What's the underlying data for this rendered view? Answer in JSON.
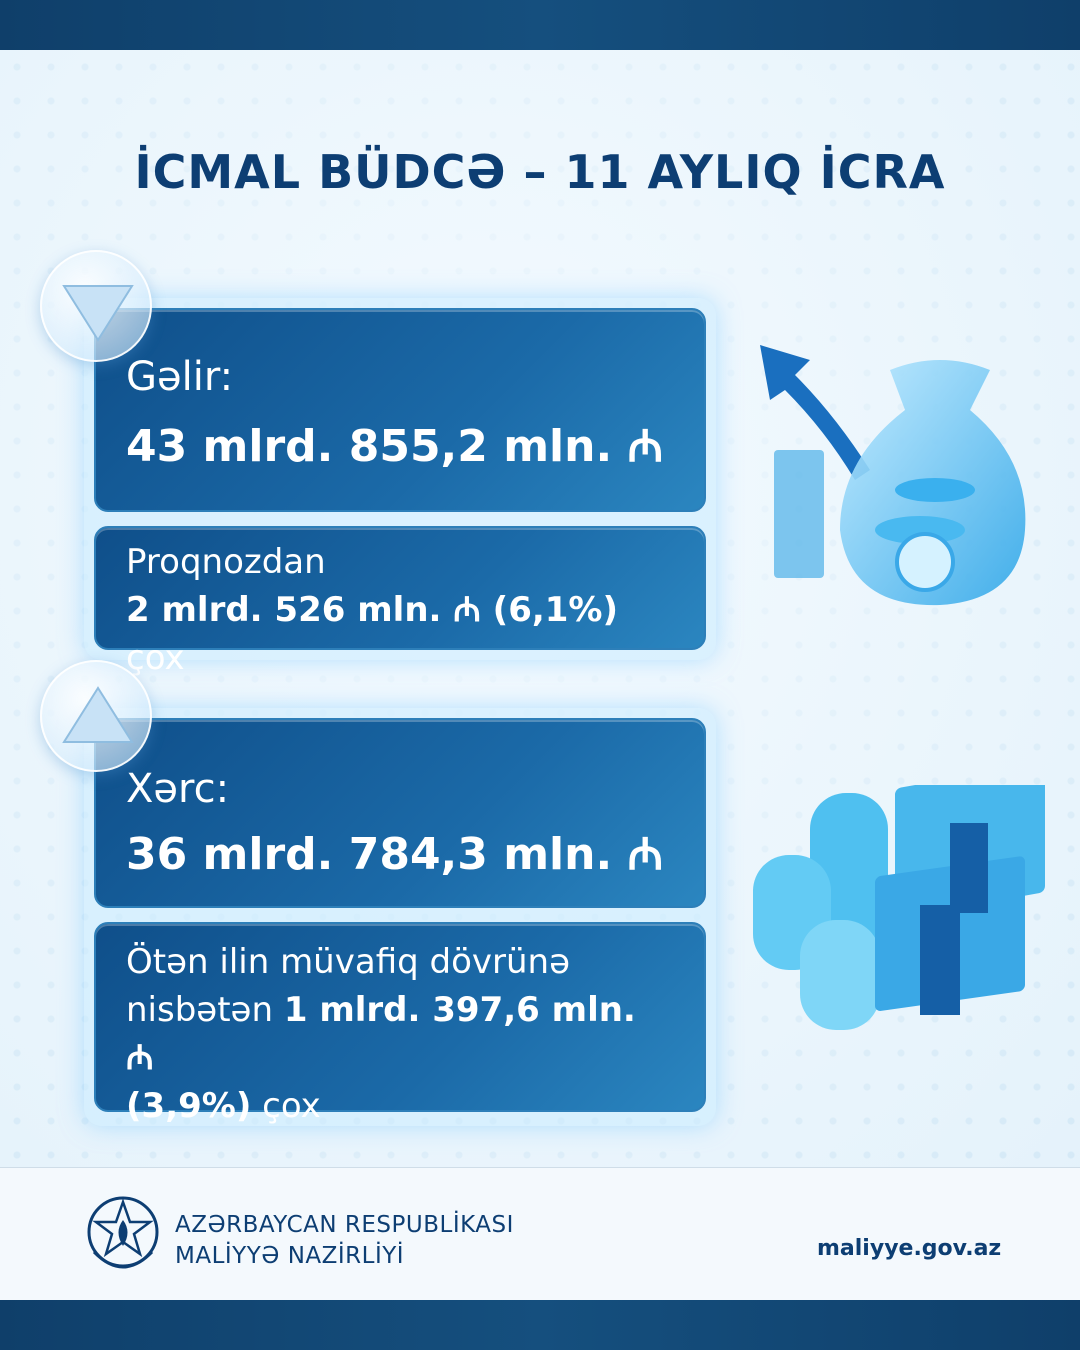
{
  "title": "İCMAL BÜDCƏ – 11 AYLIQ İCRA",
  "income": {
    "label": "Gəlir:",
    "value": "43 mlrd. 855,2 mln. ₼",
    "note_line1": "Proqnozdan",
    "note_amount": "2 mlrd. 526 mln. ₼ (6,1%)",
    "note_suffix": " çox",
    "icon": "triangle-down-icon"
  },
  "expense": {
    "label": "Xərc:",
    "value": "36 mlrd. 784,3 mln. ₼",
    "note_line1": "Ötən ilin müvafiq dövrünə",
    "note_prefix": "nisbətən ",
    "note_amount": "1 mlrd. 397,6 mln. ₼",
    "note_pct": "(3,9%)",
    "note_suffix": " çox",
    "icon": "triangle-up-icon"
  },
  "footer": {
    "org_line1": "AZƏRBAYCAN RESPUBLİKASI",
    "org_line2": "MALİYYƏ NAZİRLİYİ",
    "website": "maliyye.gov.az"
  },
  "colors": {
    "primary": "#0d3e73",
    "card": "#15609e",
    "bar": "#124777"
  }
}
